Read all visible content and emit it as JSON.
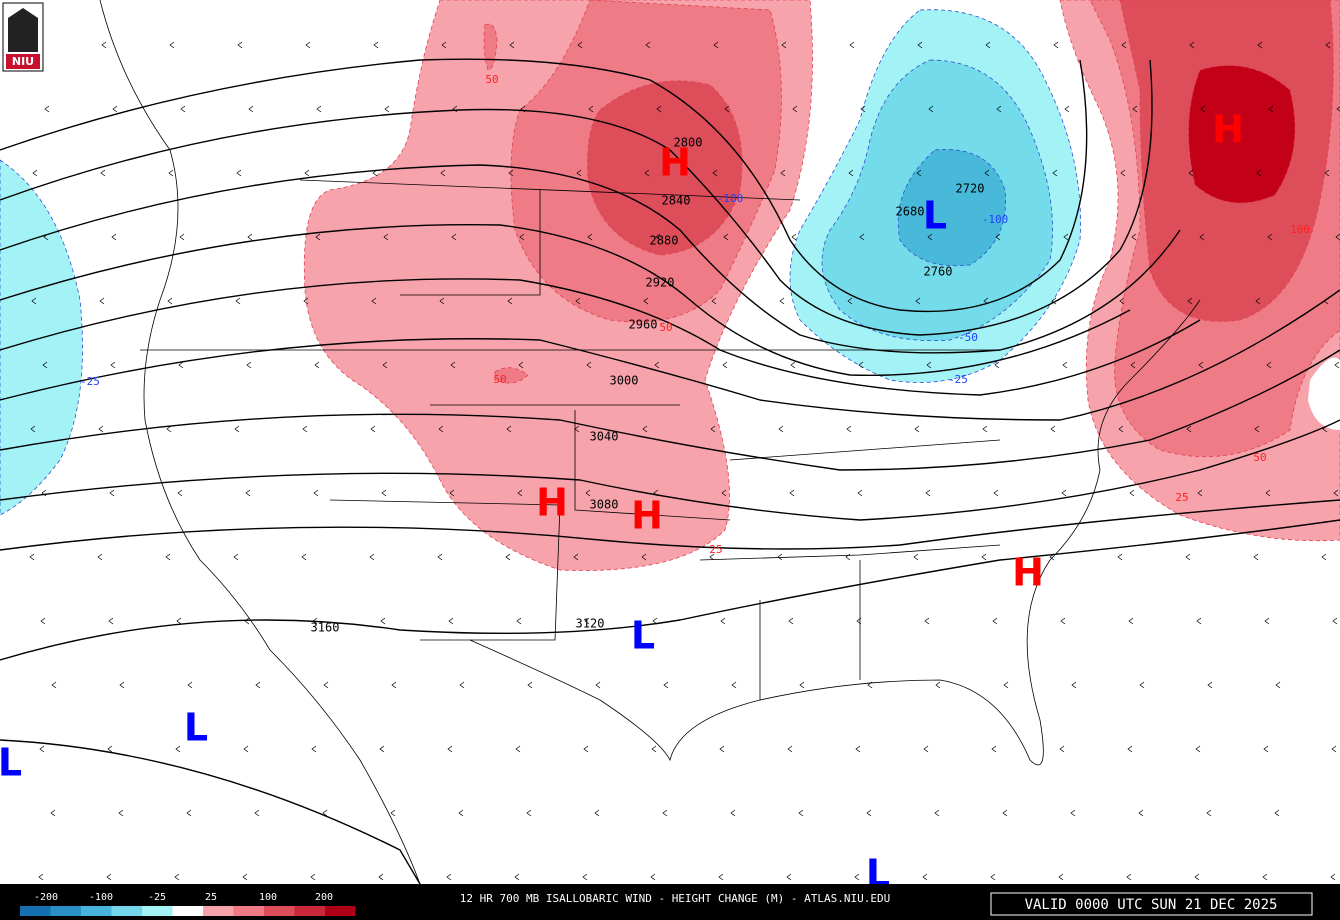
{
  "logo": "NIU",
  "footer": {
    "title": "12 HR 700 MB ISALLOBARIC WIND - HEIGHT CHANGE (M) - ATLAS.NIU.EDU",
    "valid": "VALID 0000 UTC SUN 21 DEC 2025",
    "legend": [
      "-200",
      "-100",
      "-25",
      "25",
      "100",
      "200"
    ]
  },
  "contour_labels": [
    "2800",
    "2840",
    "2880",
    "2920",
    "2960",
    "3000",
    "3040",
    "3080",
    "3120",
    "3160",
    "2720",
    "2680",
    "2760"
  ],
  "change_labels": [
    "50",
    "-100",
    "50",
    "50",
    "25",
    "-25",
    "-100",
    "-50",
    "-25",
    "100",
    "50",
    "25"
  ],
  "centers": [
    "H",
    "H",
    "H",
    "H",
    "H",
    "L",
    "L",
    "L",
    "L",
    "L"
  ]
}
